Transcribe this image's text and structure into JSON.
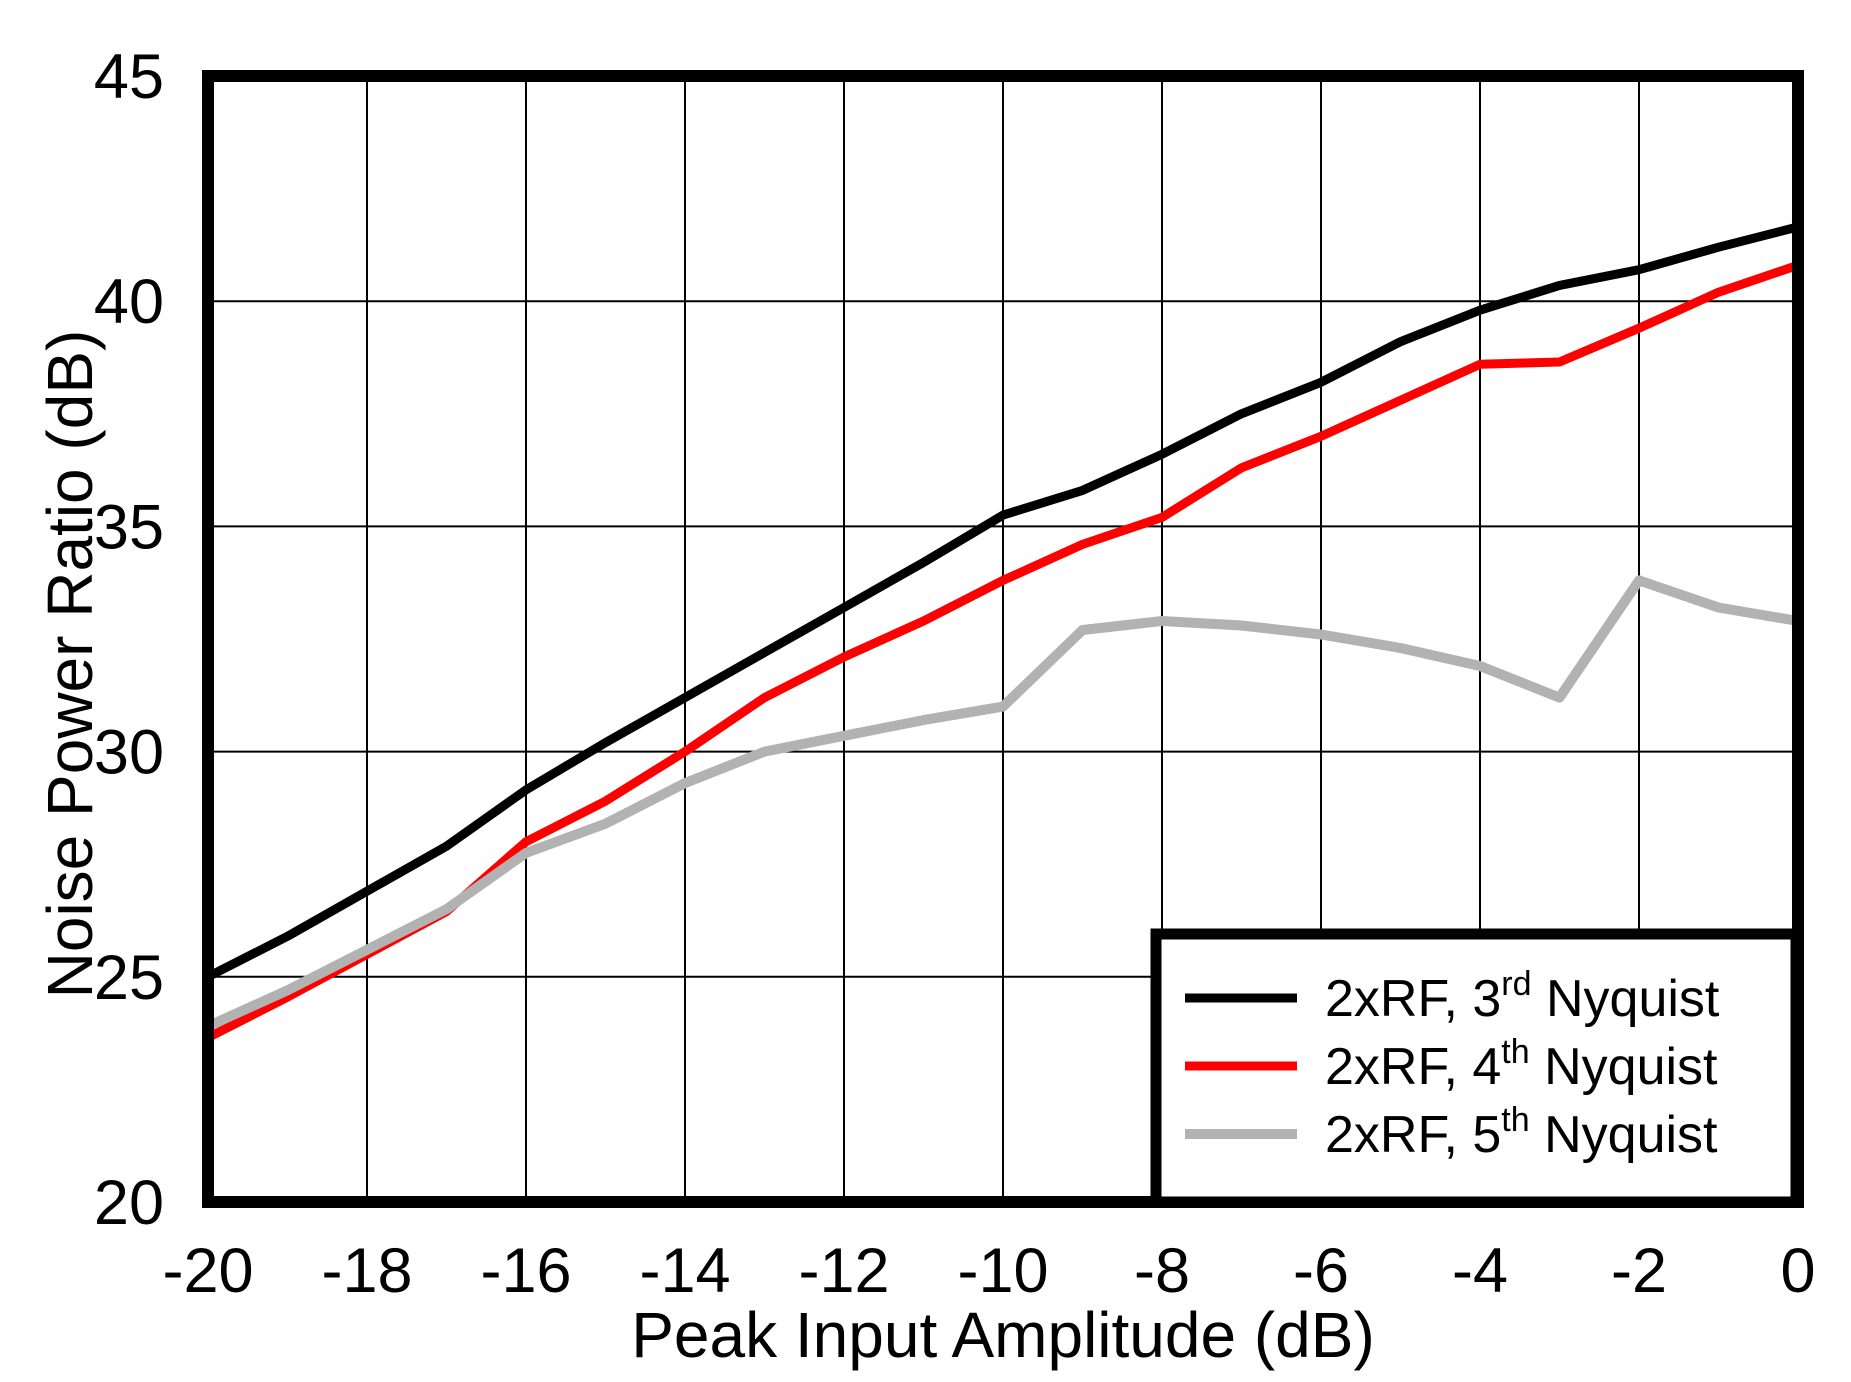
{
  "chart_data": {
    "type": "line",
    "title": "",
    "xlabel": "Peak Input Amplitude (dB)",
    "ylabel": "Noise Power Ratio (dB)",
    "xlim": [
      -20,
      0
    ],
    "ylim": [
      20,
      45
    ],
    "x_ticks": [
      -20,
      -18,
      -16,
      -14,
      -12,
      -10,
      -8,
      -6,
      -4,
      -2,
      0
    ],
    "y_ticks": [
      20,
      25,
      30,
      35,
      40,
      45
    ],
    "grid": true,
    "legend_position": "lower right",
    "frame_color": "#000000",
    "grid_color": "#000000",
    "x": [
      -20,
      -19,
      -18,
      -17,
      -16,
      -15,
      -14,
      -13,
      -12,
      -11,
      -10,
      -9,
      -8,
      -7,
      -6,
      -5,
      -4,
      -3,
      -2,
      -1,
      0
    ],
    "series": [
      {
        "name": "2xRF, 3rd Nyquist",
        "label_base": "2xRF, 3",
        "label_sup": "rd",
        "label_rest": " Nyquist",
        "color": "#000000",
        "values": [
          25.0,
          25.9,
          26.9,
          27.9,
          29.15,
          30.2,
          31.2,
          32.2,
          33.2,
          34.2,
          35.25,
          35.8,
          36.6,
          37.5,
          38.2,
          39.1,
          39.8,
          40.35,
          40.7,
          41.2,
          41.65
        ]
      },
      {
        "name": "2xRF, 4th Nyquist",
        "label_base": "2xRF, 4",
        "label_sup": "th",
        "label_rest": " Nyquist",
        "color": "#ff0000",
        "values": [
          23.65,
          24.55,
          25.5,
          26.45,
          28.0,
          28.9,
          30.0,
          31.2,
          32.1,
          32.9,
          33.8,
          34.6,
          35.2,
          36.3,
          37.0,
          37.8,
          38.6,
          38.65,
          39.4,
          40.2,
          40.8
        ]
      },
      {
        "name": "2xRF, 5th Nyquist",
        "label_base": "2xRF, 5",
        "label_sup": "th",
        "label_rest": " Nyquist",
        "color": "#b2b2b2",
        "values": [
          23.9,
          24.7,
          25.6,
          26.5,
          27.75,
          28.4,
          29.3,
          30.0,
          30.35,
          30.7,
          31.0,
          32.7,
          32.9,
          32.8,
          32.6,
          32.3,
          31.9,
          31.2,
          33.8,
          33.2,
          32.9
        ]
      }
    ]
  }
}
